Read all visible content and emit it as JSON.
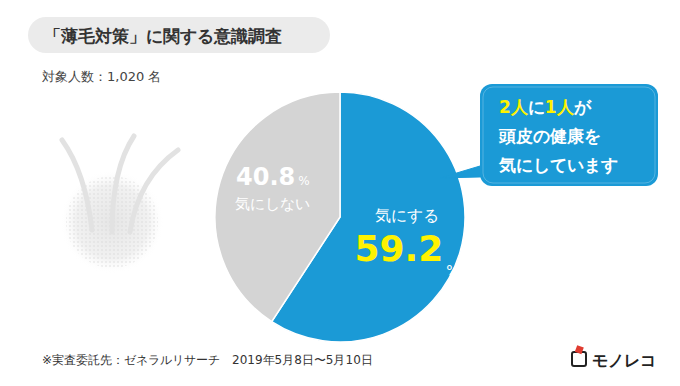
{
  "chart_data": {
    "type": "pie",
    "title": "「薄毛対策」に関する意識調査",
    "subtitle": "対象人数：1,020 名",
    "categories": [
      "気にする",
      "気にしない"
    ],
    "values": [
      59.2,
      40.8
    ],
    "value_labels": [
      "59.2%",
      "40.8%"
    ],
    "colors": [
      "#1b9ad6",
      "#d4d4d4"
    ],
    "data_labels": true,
    "annotation": [
      "2人に1人が",
      "頭皮の健康を",
      "気にしています"
    ],
    "note": "※実査委託先：ゼネラルリサーチ　2019年5月8日〜5月10日",
    "logo": "モノレコ"
  }
}
